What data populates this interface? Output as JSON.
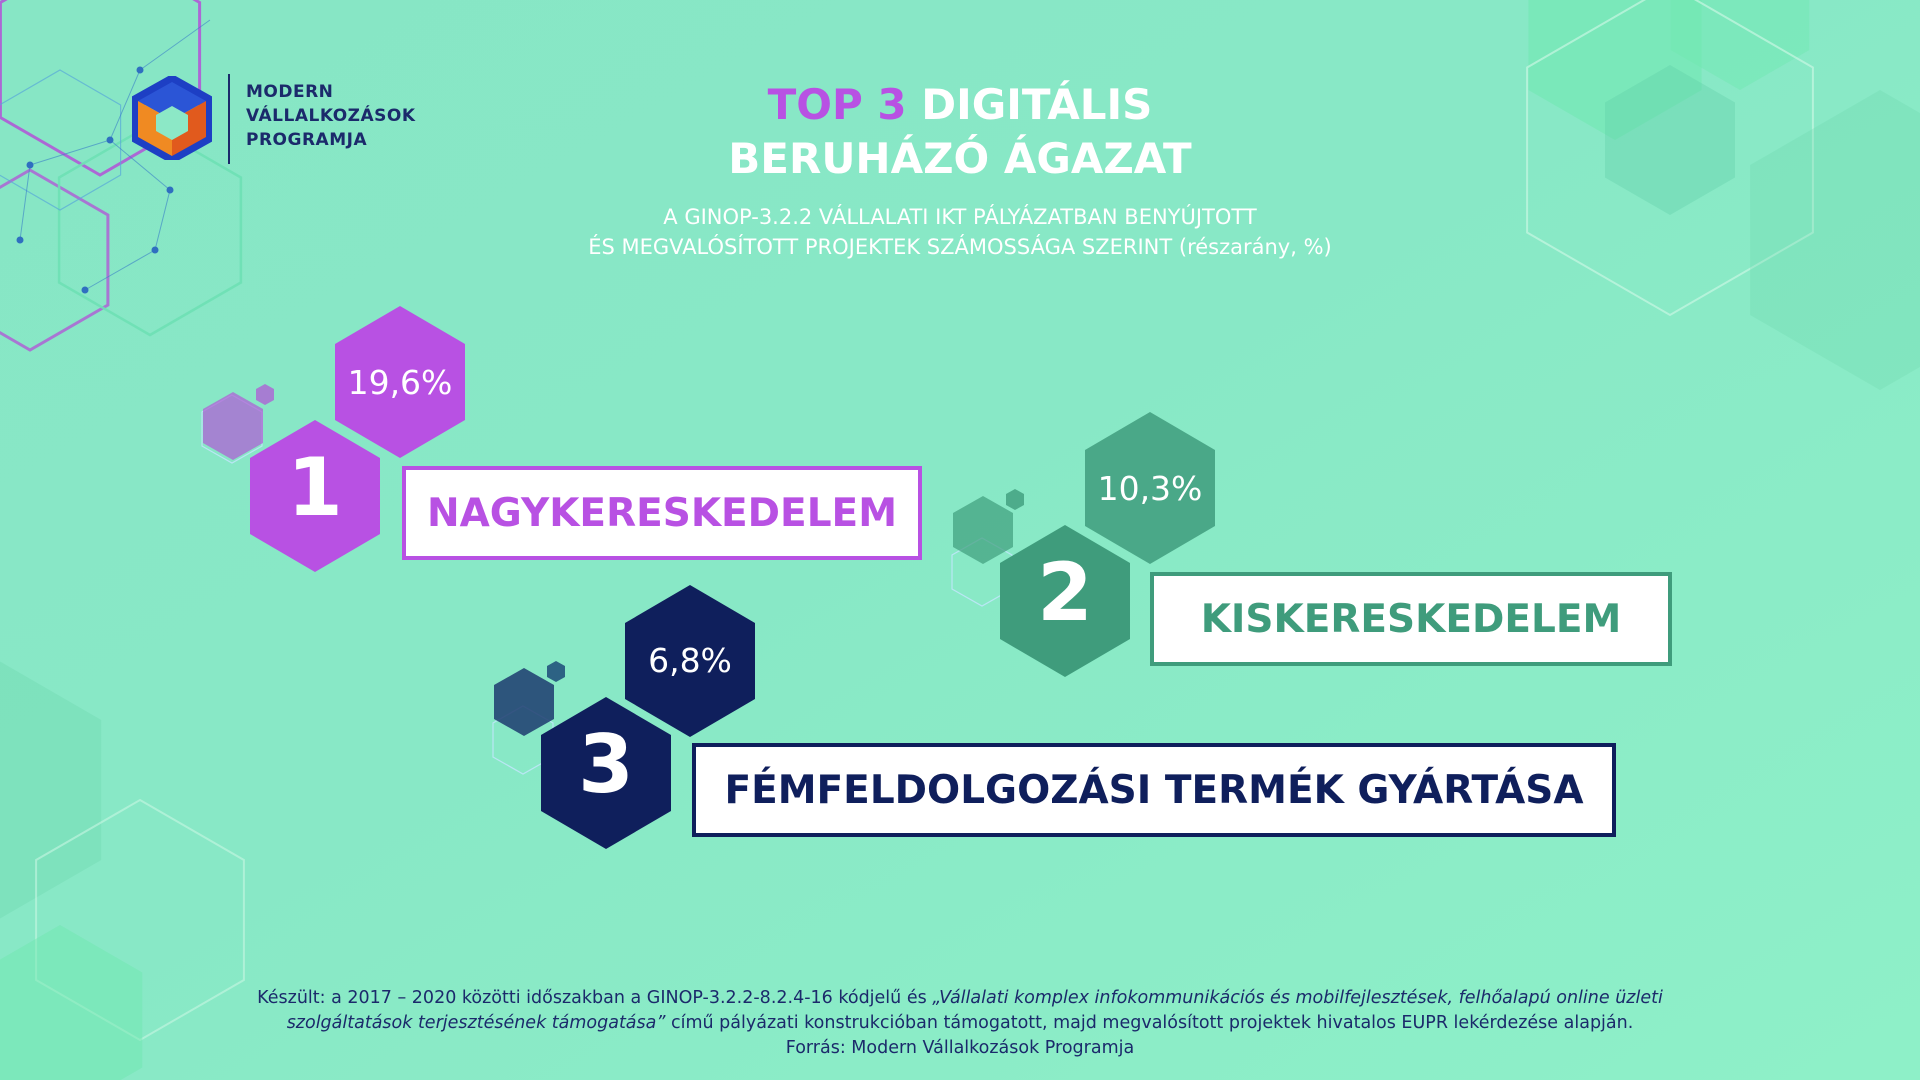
{
  "logo": {
    "line1": "MODERN",
    "line2": "VÁLLALKOZÁSOK",
    "line3": "PROGRAMJA"
  },
  "title": {
    "part_accent": "TOP 3",
    "part_rest": " DIGITÁLIS",
    "line2": "BERUHÁZÓ ÁGAZAT"
  },
  "subtitle": {
    "line1": "A GINOP-3.2.2 VÁLLALATI IKT PÁLYÁZATBAN BENYÚJTOTT",
    "line2": "ÉS MEGVALÓSÍTOTT PROJEKTEK SZÁMOSSÁGA SZERINT (részarány, %)"
  },
  "colors": {
    "purple": "#b851e3",
    "green": "#3f9c7c",
    "navy": "#0f1f5c",
    "navy_mid": "#1d3b6e"
  },
  "chart_data": {
    "type": "table",
    "rows": [
      {
        "rank": "1",
        "sector": "NAGYKERESKEDELEM",
        "value_label": "19,6%",
        "value": 19.6
      },
      {
        "rank": "2",
        "sector": "KISKERESKEDELEM",
        "value_label": "10,3%",
        "value": 10.3
      },
      {
        "rank": "3",
        "sector": "FÉMFELDOLGOZÁSI TERMÉK GYÁRTÁSA",
        "value_label": "6,8%",
        "value": 6.8
      }
    ]
  },
  "footer": {
    "l1_plain": "Készült: a 2017 – 2020 közötti időszakban a GINOP-3.2.2-8.2.4-16 kódjelű és ",
    "l1_italic": "„Vállalati komplex infokommunikációs és mobilfejlesztések, felhőalapú online üzleti",
    "l2_italic": "szolgáltatások terjesztésének támogatása”",
    "l2_plain": " című pályázati konstrukcióban támogatott, majd megvalósított projektek hivatalos EUPR lekérdezése alapján.",
    "l3": "Forrás: Modern Vállalkozások Programja"
  }
}
